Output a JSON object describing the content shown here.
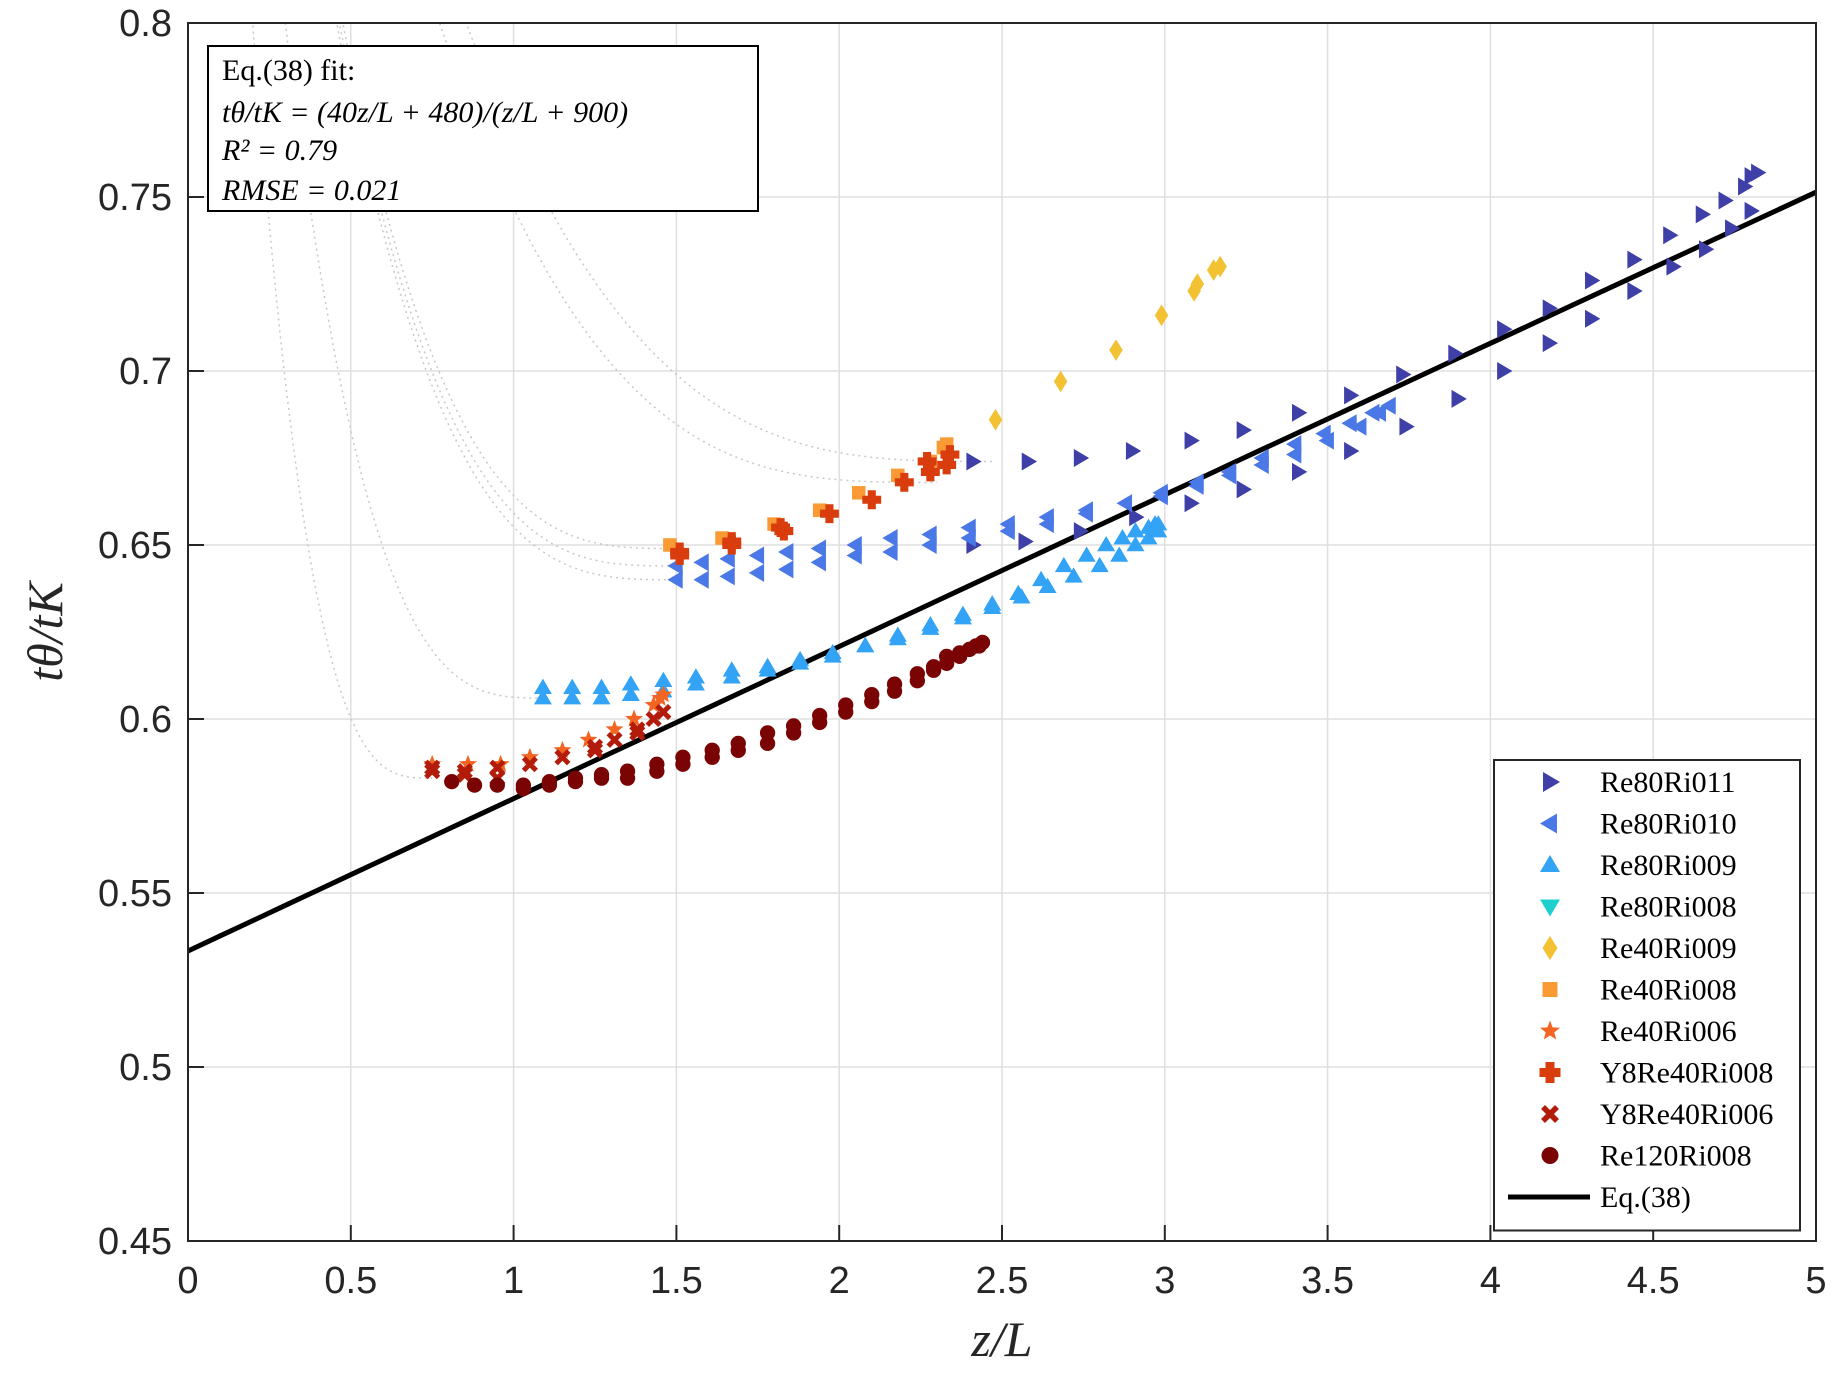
{
  "chart_data": {
    "type": "scatter",
    "title": "",
    "xlabel": "z/L",
    "ylabel": "tθ/tK",
    "xlim": [
      0,
      5
    ],
    "ylim": [
      0.45,
      0.8
    ],
    "xticks": [
      0,
      0.5,
      1,
      1.5,
      2,
      2.5,
      3,
      3.5,
      4,
      4.5,
      5
    ],
    "xtick_labels": [
      "0",
      "0.5",
      "1",
      "1.5",
      "2",
      "2.5",
      "3",
      "3.5",
      "4",
      "4.5",
      "5"
    ],
    "yticks": [
      0.45,
      0.5,
      0.55,
      0.6,
      0.65,
      0.7,
      0.75,
      0.8
    ],
    "ytick_labels": [
      "0.45",
      "0.5",
      "0.55",
      "0.6",
      "0.65",
      "0.7",
      "0.75",
      "0.8"
    ],
    "grid": true,
    "legend_position": "bottom-right",
    "annotation": {
      "lines": [
        "Eq.(38) fit:",
        "tθ/tK = (40z/L + 480)/(z/L + 900)",
        "R² = 0.79",
        "RMSE = 0.021"
      ],
      "position": "top-left"
    },
    "fit_line": {
      "name": "Eq.(38)",
      "color": "#000000",
      "a": 40,
      "b": 480,
      "c": 900,
      "x_range": [
        0,
        5
      ]
    },
    "series": [
      {
        "name": "Re80Ri011",
        "marker": "triangle-right",
        "color": "#3f3fa8",
        "x": [
          2.41,
          2.58,
          2.74,
          2.9,
          3.08,
          3.24,
          3.41,
          3.57,
          3.73,
          3.89,
          4.04,
          4.18,
          4.31,
          4.44,
          4.55,
          4.65,
          4.72,
          4.78,
          4.8,
          4.82,
          2.41,
          2.57,
          2.74,
          2.91,
          3.08,
          3.24,
          3.41,
          3.57,
          3.74,
          3.9,
          4.04,
          4.18,
          4.31,
          4.44,
          4.56,
          4.66,
          4.74,
          4.8
        ],
        "y": [
          0.674,
          0.674,
          0.675,
          0.677,
          0.68,
          0.683,
          0.688,
          0.693,
          0.699,
          0.705,
          0.712,
          0.718,
          0.726,
          0.732,
          0.739,
          0.745,
          0.749,
          0.753,
          0.756,
          0.757,
          0.65,
          0.651,
          0.654,
          0.658,
          0.662,
          0.666,
          0.671,
          0.677,
          0.684,
          0.692,
          0.7,
          0.708,
          0.715,
          0.723,
          0.73,
          0.735,
          0.741,
          0.746
        ]
      },
      {
        "name": "Re80Ri010",
        "marker": "triangle-left",
        "color": "#4a78e6",
        "x": [
          1.5,
          1.58,
          1.66,
          1.75,
          1.84,
          1.94,
          2.05,
          2.16,
          2.28,
          2.4,
          2.52,
          2.64,
          2.76,
          2.88,
          2.99,
          3.1,
          3.2,
          3.3,
          3.4,
          3.49,
          3.57,
          3.64,
          3.69,
          1.5,
          1.58,
          1.66,
          1.75,
          1.84,
          1.94,
          2.05,
          2.16,
          2.28,
          2.4,
          2.52,
          2.64,
          2.76,
          2.88,
          2.99,
          3.1,
          3.2,
          3.3,
          3.4,
          3.5,
          3.6,
          3.66
        ],
        "y": [
          0.644,
          0.645,
          0.646,
          0.647,
          0.648,
          0.649,
          0.65,
          0.652,
          0.653,
          0.655,
          0.656,
          0.658,
          0.66,
          0.662,
          0.665,
          0.668,
          0.671,
          0.675,
          0.679,
          0.682,
          0.685,
          0.688,
          0.69,
          0.64,
          0.64,
          0.641,
          0.642,
          0.643,
          0.645,
          0.647,
          0.648,
          0.65,
          0.652,
          0.654,
          0.656,
          0.659,
          0.662,
          0.664,
          0.667,
          0.67,
          0.673,
          0.676,
          0.68,
          0.684,
          0.688
        ]
      },
      {
        "name": "Re80Ri009",
        "marker": "triangle-up",
        "color": "#33a3f5",
        "x": [
          1.09,
          1.18,
          1.27,
          1.36,
          1.46,
          1.56,
          1.67,
          1.78,
          1.88,
          1.98,
          2.08,
          2.18,
          2.28,
          2.38,
          2.47,
          2.55,
          2.62,
          2.69,
          2.76,
          2.82,
          2.87,
          2.91,
          2.95,
          2.97,
          2.98,
          1.09,
          1.18,
          1.27,
          1.36,
          1.46,
          1.56,
          1.67,
          1.78,
          1.88,
          1.98,
          2.08,
          2.18,
          2.28,
          2.38,
          2.47,
          2.56,
          2.64,
          2.72,
          2.8,
          2.86,
          2.91,
          2.95,
          2.98
        ],
        "y": [
          0.609,
          0.609,
          0.609,
          0.61,
          0.611,
          0.612,
          0.614,
          0.615,
          0.617,
          0.619,
          0.621,
          0.624,
          0.627,
          0.63,
          0.633,
          0.636,
          0.64,
          0.644,
          0.647,
          0.65,
          0.652,
          0.654,
          0.655,
          0.656,
          0.656,
          0.606,
          0.606,
          0.606,
          0.607,
          0.608,
          0.61,
          0.612,
          0.614,
          0.616,
          0.618,
          0.621,
          0.623,
          0.626,
          0.629,
          0.632,
          0.635,
          0.638,
          0.641,
          0.644,
          0.647,
          0.65,
          0.652,
          0.654
        ]
      },
      {
        "name": "Re80Ri008",
        "marker": "triangle-down",
        "color": "#1fcfcf",
        "x": [],
        "y": []
      },
      {
        "name": "Re40Ri009",
        "marker": "diamond",
        "color": "#f2c232",
        "x": [
          2.48,
          2.68,
          2.85,
          2.99,
          3.09,
          3.1,
          3.15,
          3.17
        ],
        "y": [
          0.686,
          0.697,
          0.706,
          0.716,
          0.723,
          0.725,
          0.729,
          0.73
        ]
      },
      {
        "name": "Re40Ri008",
        "marker": "square",
        "color": "#f99a35",
        "x": [
          1.48,
          1.64,
          1.8,
          1.94,
          2.06,
          2.18,
          2.28,
          2.32,
          2.33
        ],
        "y": [
          0.65,
          0.652,
          0.656,
          0.66,
          0.665,
          0.67,
          0.674,
          0.678,
          0.679
        ]
      },
      {
        "name": "Re40Ri006",
        "marker": "star",
        "color": "#f26522",
        "x": [
          0.75,
          0.86,
          0.96,
          1.05,
          1.15,
          1.23,
          1.31,
          1.37,
          1.43,
          1.45,
          1.46
        ],
        "y": [
          0.587,
          0.587,
          0.587,
          0.589,
          0.591,
          0.594,
          0.597,
          0.6,
          0.604,
          0.606,
          0.607
        ]
      },
      {
        "name": "Y8Re40Ri008",
        "marker": "plus",
        "color": "#d93c0d",
        "x": [
          1.51,
          1.67,
          1.83,
          1.97,
          2.1,
          2.2,
          2.28,
          2.33,
          2.34,
          1.51,
          1.67,
          1.82,
          2.27
        ],
        "y": [
          0.647,
          0.651,
          0.654,
          0.659,
          0.663,
          0.668,
          0.671,
          0.673,
          0.676,
          0.648,
          0.65,
          0.655,
          0.674
        ]
      },
      {
        "name": "Y8Re40Ri006",
        "marker": "x",
        "color": "#b31c0a",
        "x": [
          0.75,
          0.85,
          0.95,
          1.05,
          1.15,
          1.25,
          1.31,
          1.38,
          1.43,
          1.46,
          0.75,
          0.85,
          0.95,
          1.25,
          1.38
        ],
        "y": [
          0.585,
          0.585,
          0.586,
          0.587,
          0.589,
          0.591,
          0.594,
          0.596,
          0.6,
          0.602,
          0.586,
          0.584,
          0.583,
          0.592,
          0.597
        ]
      },
      {
        "name": "Re120Ri008",
        "marker": "circle",
        "color": "#7a0403",
        "x": [
          0.81,
          0.88,
          0.95,
          1.03,
          1.11,
          1.19,
          1.27,
          1.35,
          1.44,
          1.52,
          1.61,
          1.69,
          1.78,
          1.86,
          1.94,
          2.02,
          2.1,
          2.17,
          2.24,
          2.29,
          2.33,
          2.37,
          2.4,
          2.42,
          2.44,
          1.03,
          1.11,
          1.19,
          1.27,
          1.35,
          1.44,
          1.52,
          1.61,
          1.69,
          1.78,
          1.86,
          1.94,
          2.02,
          2.1,
          2.17,
          2.24,
          2.29,
          2.33,
          2.37,
          2.4,
          2.43
        ],
        "y": [
          0.582,
          0.581,
          0.581,
          0.581,
          0.582,
          0.583,
          0.584,
          0.585,
          0.587,
          0.589,
          0.591,
          0.593,
          0.596,
          0.598,
          0.601,
          0.604,
          0.607,
          0.61,
          0.613,
          0.615,
          0.618,
          0.619,
          0.62,
          0.621,
          0.622,
          0.58,
          0.581,
          0.582,
          0.583,
          0.583,
          0.585,
          0.587,
          0.589,
          0.591,
          0.593,
          0.596,
          0.599,
          0.602,
          0.605,
          0.608,
          0.611,
          0.614,
          0.616,
          0.618,
          0.62,
          0.621
        ]
      }
    ],
    "legend": [
      "Re80Ri011",
      "Re80Ri010",
      "Re80Ri009",
      "Re80Ri008",
      "Re40Ri009",
      "Re40Ri008",
      "Re40Ri006",
      "Y8Re40Ri008",
      "Y8Re40Ri006",
      "Re120Ri008",
      "Eq.(38)"
    ],
    "guide_curves": [
      {
        "x0": 0.75,
        "ymin": 0.583,
        "color": "#c8c8c8"
      },
      {
        "x0": 1.1,
        "ymin": 0.606,
        "color": "#c8c8c8"
      },
      {
        "x0": 1.5,
        "ymin": 0.64,
        "color": "#c8c8c8"
      },
      {
        "x0": 1.5,
        "ymin": 0.644,
        "color": "#c8c8c8"
      },
      {
        "x0": 1.5,
        "ymin": 0.649,
        "color": "#c8c8c8"
      },
      {
        "x0": 2.3,
        "ymin": 0.668,
        "color": "#c8c8c8"
      },
      {
        "x0": 2.48,
        "ymin": 0.674,
        "color": "#c8c8c8"
      }
    ]
  }
}
